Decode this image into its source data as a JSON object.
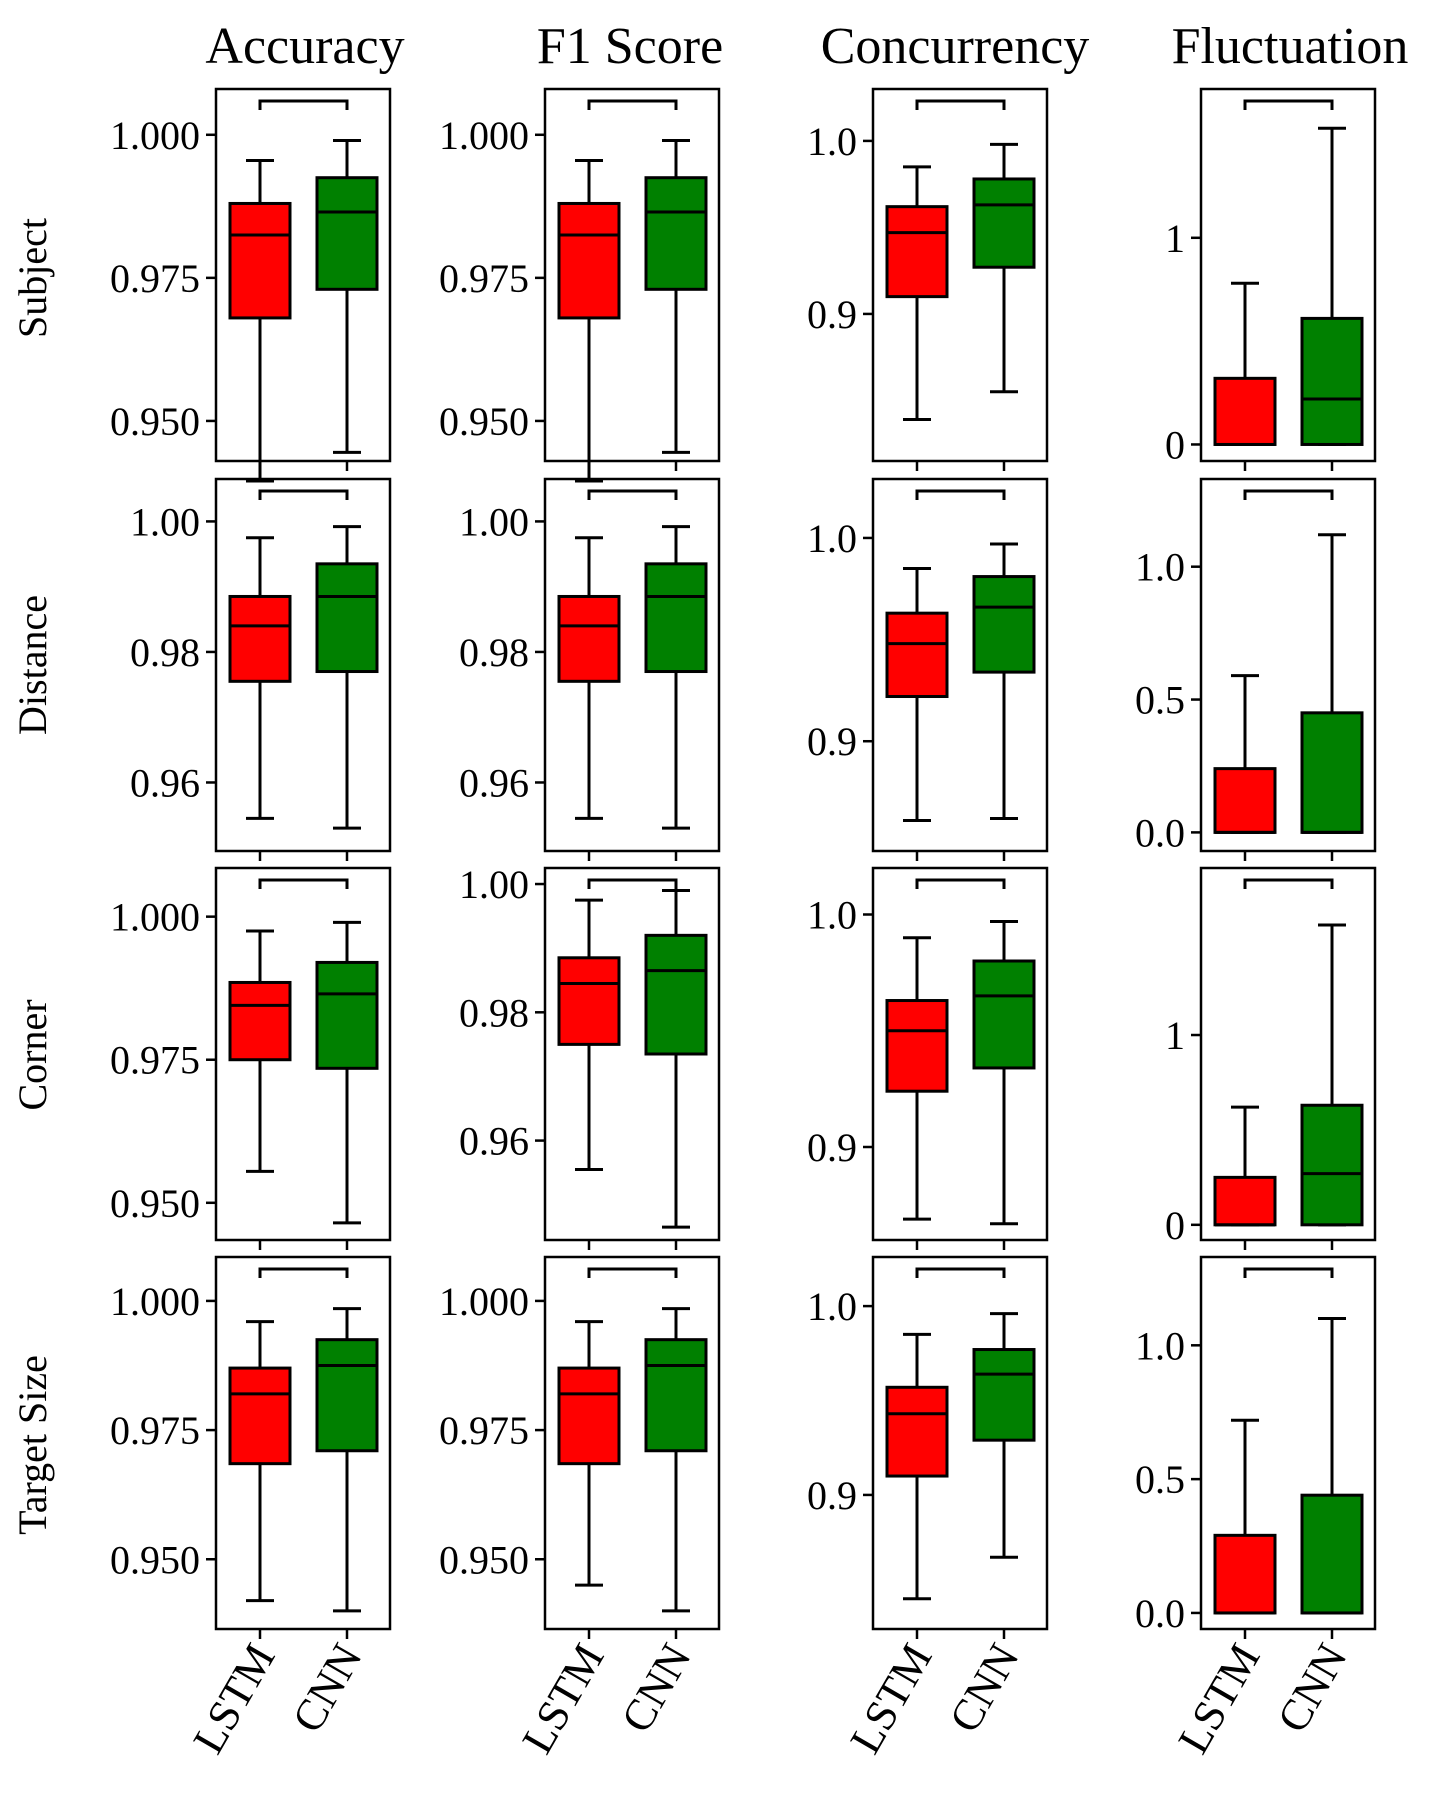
{
  "figure": {
    "columns": [
      "Accuracy",
      "F1 Score",
      "Concurrency",
      "Fluctuation"
    ],
    "rows": [
      "Subject",
      "Distance",
      "Corner",
      "Target Size"
    ],
    "colors": {
      "LSTM": "#ff0000",
      "CNN": "#008000"
    }
  },
  "chart_data": [
    {
      "type": "box",
      "row": "Subject",
      "metric": "Accuracy",
      "categories": [
        "LSTM",
        "CNN"
      ],
      "ylim": [
        0.943,
        1.008
      ],
      "yticks": [
        0.95,
        0.975,
        1.0
      ],
      "ytick_labels": [
        "0.950",
        "0.975",
        "1.000"
      ],
      "boxes": [
        {
          "name": "LSTM",
          "whislo": 0.9395,
          "q1": 0.968,
          "med": 0.9825,
          "q3": 0.988,
          "whishi": 0.9955
        },
        {
          "name": "CNN",
          "whislo": 0.9445,
          "q1": 0.973,
          "med": 0.9865,
          "q3": 0.9925,
          "whishi": 0.999
        }
      ]
    },
    {
      "type": "box",
      "row": "Subject",
      "metric": "F1 Score",
      "categories": [
        "LSTM",
        "CNN"
      ],
      "ylim": [
        0.943,
        1.008
      ],
      "yticks": [
        0.95,
        0.975,
        1.0
      ],
      "ytick_labels": [
        "0.950",
        "0.975",
        "1.000"
      ],
      "boxes": [
        {
          "name": "LSTM",
          "whislo": 0.9395,
          "q1": 0.968,
          "med": 0.9825,
          "q3": 0.988,
          "whishi": 0.9955
        },
        {
          "name": "CNN",
          "whislo": 0.9445,
          "q1": 0.973,
          "med": 0.9865,
          "q3": 0.9925,
          "whishi": 0.999
        }
      ]
    },
    {
      "type": "box",
      "row": "Subject",
      "metric": "Concurrency",
      "categories": [
        "LSTM",
        "CNN"
      ],
      "ylim": [
        0.815,
        1.03
      ],
      "yticks": [
        0.9,
        1.0
      ],
      "ytick_labels": [
        "0.9",
        "1.0"
      ],
      "boxes": [
        {
          "name": "LSTM",
          "whislo": 0.839,
          "q1": 0.91,
          "med": 0.947,
          "q3": 0.962,
          "whishi": 0.985
        },
        {
          "name": "CNN",
          "whislo": 0.855,
          "q1": 0.927,
          "med": 0.963,
          "q3": 0.978,
          "whishi": 0.998
        }
      ]
    },
    {
      "type": "box",
      "row": "Subject",
      "metric": "Fluctuation",
      "categories": [
        "LSTM",
        "CNN"
      ],
      "ylim": [
        -0.08,
        1.72
      ],
      "yticks": [
        0,
        1
      ],
      "ytick_labels": [
        "0",
        "1"
      ],
      "boxes": [
        {
          "name": "LSTM",
          "whislo": 0,
          "q1": 0,
          "med": 0,
          "q3": 0.32,
          "whishi": 0.78
        },
        {
          "name": "CNN",
          "whislo": 0,
          "q1": 0,
          "med": 0.22,
          "q3": 0.61,
          "whishi": 1.53
        }
      ]
    },
    {
      "type": "box",
      "row": "Distance",
      "metric": "Accuracy",
      "categories": [
        "LSTM",
        "CNN"
      ],
      "ylim": [
        0.9495,
        1.0065
      ],
      "yticks": [
        0.96,
        0.98,
        1.0
      ],
      "ytick_labels": [
        "0.96",
        "0.98",
        "1.00"
      ],
      "boxes": [
        {
          "name": "LSTM",
          "whislo": 0.9545,
          "q1": 0.9755,
          "med": 0.984,
          "q3": 0.9885,
          "whishi": 0.9975
        },
        {
          "name": "CNN",
          "whislo": 0.953,
          "q1": 0.977,
          "med": 0.9885,
          "q3": 0.9935,
          "whishi": 0.9992
        }
      ]
    },
    {
      "type": "box",
      "row": "Distance",
      "metric": "F1 Score",
      "categories": [
        "LSTM",
        "CNN"
      ],
      "ylim": [
        0.9495,
        1.0065
      ],
      "yticks": [
        0.96,
        0.98,
        1.0
      ],
      "ytick_labels": [
        "0.96",
        "0.98",
        "1.00"
      ],
      "boxes": [
        {
          "name": "LSTM",
          "whislo": 0.9545,
          "q1": 0.9755,
          "med": 0.984,
          "q3": 0.9885,
          "whishi": 0.9975
        },
        {
          "name": "CNN",
          "whislo": 0.953,
          "q1": 0.977,
          "med": 0.9885,
          "q3": 0.9935,
          "whishi": 0.9992
        }
      ]
    },
    {
      "type": "box",
      "row": "Distance",
      "metric": "Concurrency",
      "categories": [
        "LSTM",
        "CNN"
      ],
      "ylim": [
        0.846,
        1.029
      ],
      "yticks": [
        0.9,
        1.0
      ],
      "ytick_labels": [
        "0.9",
        "1.0"
      ],
      "boxes": [
        {
          "name": "LSTM",
          "whislo": 0.861,
          "q1": 0.922,
          "med": 0.948,
          "q3": 0.963,
          "whishi": 0.985
        },
        {
          "name": "CNN",
          "whislo": 0.862,
          "q1": 0.934,
          "med": 0.966,
          "q3": 0.981,
          "whishi": 0.997
        }
      ]
    },
    {
      "type": "box",
      "row": "Distance",
      "metric": "Fluctuation",
      "categories": [
        "LSTM",
        "CNN"
      ],
      "ylim": [
        -0.07,
        1.33
      ],
      "yticks": [
        0.0,
        0.5,
        1.0
      ],
      "ytick_labels": [
        "0.0",
        "0.5",
        "1.0"
      ],
      "boxes": [
        {
          "name": "LSTM",
          "whislo": 0,
          "q1": 0,
          "med": 0,
          "q3": 0.24,
          "whishi": 0.59
        },
        {
          "name": "CNN",
          "whislo": 0,
          "q1": 0,
          "med": 0,
          "q3": 0.45,
          "whishi": 1.12
        }
      ]
    },
    {
      "type": "box",
      "row": "Corner",
      "metric": "Accuracy",
      "categories": [
        "LSTM",
        "CNN"
      ],
      "ylim": [
        0.9435,
        1.0085
      ],
      "yticks": [
        0.95,
        0.975,
        1.0
      ],
      "ytick_labels": [
        "0.950",
        "0.975",
        "1.000"
      ],
      "boxes": [
        {
          "name": "LSTM",
          "whislo": 0.9555,
          "q1": 0.975,
          "med": 0.9845,
          "q3": 0.9885,
          "whishi": 0.9975
        },
        {
          "name": "CNN",
          "whislo": 0.9465,
          "q1": 0.9735,
          "med": 0.9865,
          "q3": 0.992,
          "whishi": 0.999
        }
      ]
    },
    {
      "type": "box",
      "row": "Corner",
      "metric": "F1 Score",
      "categories": [
        "LSTM",
        "CNN"
      ],
      "ylim": [
        0.9445,
        1.0025
      ],
      "yticks": [
        0.96,
        0.98,
        1.0
      ],
      "ytick_labels": [
        "0.96",
        "0.98",
        "1.00"
      ],
      "boxes": [
        {
          "name": "LSTM",
          "whislo": 0.9555,
          "q1": 0.975,
          "med": 0.9845,
          "q3": 0.9885,
          "whishi": 0.9975
        },
        {
          "name": "CNN",
          "whislo": 0.9465,
          "q1": 0.9735,
          "med": 0.9865,
          "q3": 0.992,
          "whishi": 0.999
        }
      ]
    },
    {
      "type": "box",
      "row": "Corner",
      "metric": "Concurrency",
      "categories": [
        "LSTM",
        "CNN"
      ],
      "ylim": [
        0.86,
        1.02
      ],
      "yticks": [
        0.9,
        1.0
      ],
      "ytick_labels": [
        "0.9",
        "1.0"
      ],
      "boxes": [
        {
          "name": "LSTM",
          "whislo": 0.869,
          "q1": 0.924,
          "med": 0.95,
          "q3": 0.963,
          "whishi": 0.99
        },
        {
          "name": "CNN",
          "whislo": 0.867,
          "q1": 0.934,
          "med": 0.965,
          "q3": 0.98,
          "whishi": 0.997
        }
      ]
    },
    {
      "type": "box",
      "row": "Corner",
      "metric": "Fluctuation",
      "categories": [
        "LSTM",
        "CNN"
      ],
      "ylim": [
        -0.08,
        1.88
      ],
      "yticks": [
        0,
        1
      ],
      "ytick_labels": [
        "0",
        "1"
      ],
      "boxes": [
        {
          "name": "LSTM",
          "whislo": 0,
          "q1": 0,
          "med": 0,
          "q3": 0.25,
          "whishi": 0.62
        },
        {
          "name": "CNN",
          "whislo": 0,
          "q1": 0,
          "med": 0.27,
          "q3": 0.63,
          "whishi": 1.58
        }
      ]
    },
    {
      "type": "box",
      "row": "Target Size",
      "metric": "Accuracy",
      "categories": [
        "LSTM",
        "CNN"
      ],
      "ylim": [
        0.9365,
        1.0085
      ],
      "yticks": [
        0.95,
        0.975,
        1.0
      ],
      "ytick_labels": [
        "0.950",
        "0.975",
        "1.000"
      ],
      "boxes": [
        {
          "name": "LSTM",
          "whislo": 0.942,
          "q1": 0.9685,
          "med": 0.982,
          "q3": 0.987,
          "whishi": 0.996
        },
        {
          "name": "CNN",
          "whislo": 0.94,
          "q1": 0.971,
          "med": 0.9875,
          "q3": 0.9925,
          "whishi": 0.9985
        }
      ]
    },
    {
      "type": "box",
      "row": "Target Size",
      "metric": "F1 Score",
      "categories": [
        "LSTM",
        "CNN"
      ],
      "ylim": [
        0.9365,
        1.0085
      ],
      "yticks": [
        0.95,
        0.975,
        1.0
      ],
      "ytick_labels": [
        "0.950",
        "0.975",
        "1.000"
      ],
      "boxes": [
        {
          "name": "LSTM",
          "whislo": 0.945,
          "q1": 0.9685,
          "med": 0.982,
          "q3": 0.987,
          "whishi": 0.996
        },
        {
          "name": "CNN",
          "whislo": 0.94,
          "q1": 0.971,
          "med": 0.9875,
          "q3": 0.9925,
          "whishi": 0.9985
        }
      ]
    },
    {
      "type": "box",
      "row": "Target Size",
      "metric": "Concurrency",
      "categories": [
        "LSTM",
        "CNN"
      ],
      "ylim": [
        0.829,
        1.026
      ],
      "yticks": [
        0.9,
        1.0
      ],
      "ytick_labels": [
        "0.9",
        "1.0"
      ],
      "boxes": [
        {
          "name": "LSTM",
          "whislo": 0.845,
          "q1": 0.91,
          "med": 0.943,
          "q3": 0.957,
          "whishi": 0.985
        },
        {
          "name": "CNN",
          "whislo": 0.867,
          "q1": 0.929,
          "med": 0.964,
          "q3": 0.977,
          "whishi": 0.996
        }
      ]
    },
    {
      "type": "box",
      "row": "Target Size",
      "metric": "Fluctuation",
      "categories": [
        "LSTM",
        "CNN"
      ],
      "ylim": [
        -0.06,
        1.33
      ],
      "yticks": [
        0.0,
        0.5,
        1.0
      ],
      "ytick_labels": [
        "0.0",
        "0.5",
        "1.0"
      ],
      "boxes": [
        {
          "name": "LSTM",
          "whislo": 0,
          "q1": 0,
          "med": 0,
          "q3": 0.29,
          "whishi": 0.72
        },
        {
          "name": "CNN",
          "whislo": 0,
          "q1": 0,
          "med": 0,
          "q3": 0.44,
          "whishi": 1.1
        }
      ]
    }
  ]
}
